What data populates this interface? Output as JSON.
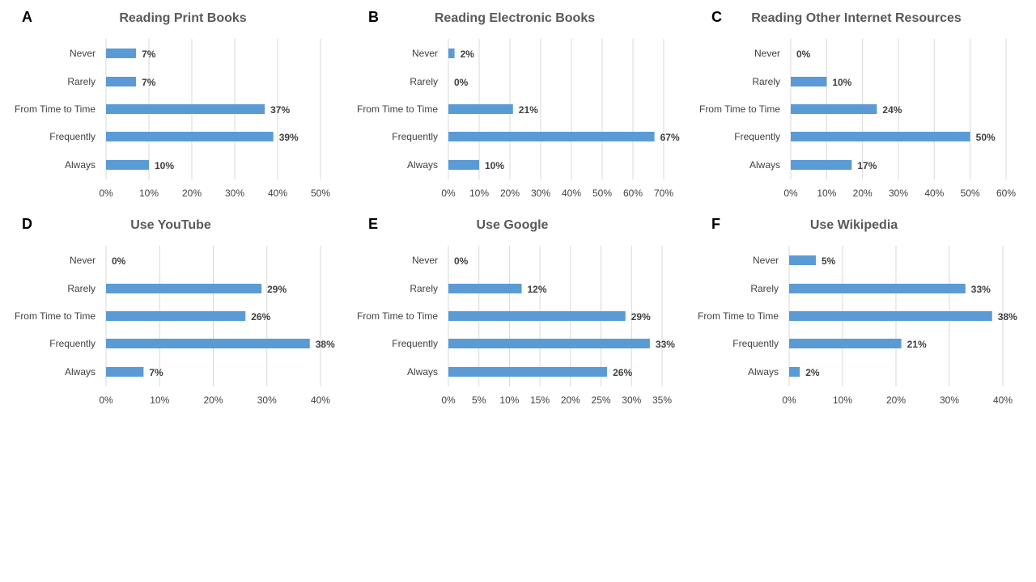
{
  "bar_color": "#5b9bd5",
  "chart_data": [
    {
      "panel": "A",
      "type": "bar",
      "orientation": "horizontal",
      "title": "Reading Print Books",
      "categories": [
        "Never",
        "Rarely",
        "From Time to Time",
        "Frequently",
        "Always"
      ],
      "values": [
        7,
        7,
        37,
        39,
        10
      ],
      "value_labels": [
        "7%",
        "7%",
        "37%",
        "39%",
        "10%"
      ],
      "xlim": [
        0,
        50
      ],
      "ticks": [
        0,
        10,
        20,
        30,
        40,
        50
      ],
      "tick_labels": [
        "0%",
        "10%",
        "20%",
        "30%",
        "40%",
        "50%"
      ],
      "grid": true
    },
    {
      "panel": "B",
      "type": "bar",
      "orientation": "horizontal",
      "title": "Reading Electronic Books",
      "categories": [
        "Never",
        "Rarely",
        "From Time to Time",
        "Frequently",
        "Always"
      ],
      "values": [
        2,
        0,
        21,
        67,
        10
      ],
      "value_labels": [
        "2%",
        "0%",
        "21%",
        "67%",
        "10%"
      ],
      "xlim": [
        0,
        70
      ],
      "ticks": [
        0,
        10,
        20,
        30,
        40,
        50,
        60,
        70
      ],
      "tick_labels": [
        "0%",
        "10%",
        "20%",
        "30%",
        "40%",
        "50%",
        "60%",
        "70%"
      ],
      "grid": true
    },
    {
      "panel": "C",
      "type": "bar",
      "orientation": "horizontal",
      "title": "Reading Other Internet Resources",
      "categories": [
        "Never",
        "Rarely",
        "From Time to Time",
        "Frequently",
        "Always"
      ],
      "values": [
        0,
        10,
        24,
        50,
        17
      ],
      "value_labels": [
        "0%",
        "10%",
        "24%",
        "50%",
        "17%"
      ],
      "xlim": [
        0,
        60
      ],
      "ticks": [
        0,
        10,
        20,
        30,
        40,
        50,
        60
      ],
      "tick_labels": [
        "0%",
        "10%",
        "20%",
        "30%",
        "40%",
        "50%",
        "60%"
      ],
      "grid": true
    },
    {
      "panel": "D",
      "type": "bar",
      "orientation": "horizontal",
      "title": "Use YouTube",
      "categories": [
        "Never",
        "Rarely",
        "From Time to Time",
        "Frequently",
        "Always"
      ],
      "values": [
        0,
        29,
        26,
        38,
        7
      ],
      "value_labels": [
        "0%",
        "29%",
        "26%",
        "38%",
        "7%"
      ],
      "xlim": [
        0,
        40
      ],
      "ticks": [
        0,
        10,
        20,
        30,
        40
      ],
      "tick_labels": [
        "0%",
        "10%",
        "20%",
        "30%",
        "40%"
      ],
      "grid": true
    },
    {
      "panel": "E",
      "type": "bar",
      "orientation": "horizontal",
      "title": "Use Google",
      "categories": [
        "Never",
        "Rarely",
        "From Time to Time",
        "Frequently",
        "Always"
      ],
      "values": [
        0,
        12,
        29,
        33,
        26
      ],
      "value_labels": [
        "0%",
        "12%",
        "29%",
        "33%",
        "26%"
      ],
      "xlim": [
        0,
        35
      ],
      "ticks": [
        0,
        5,
        10,
        15,
        20,
        25,
        30,
        35
      ],
      "tick_labels": [
        "0%",
        "5%",
        "10%",
        "15%",
        "20%",
        "25%",
        "30%",
        "35%"
      ],
      "grid": true
    },
    {
      "panel": "F",
      "type": "bar",
      "orientation": "horizontal",
      "title": "Use Wikipedia",
      "categories": [
        "Never",
        "Rarely",
        "From Time to Time",
        "Frequently",
        "Always"
      ],
      "values": [
        5,
        33,
        38,
        21,
        2
      ],
      "value_labels": [
        "5%",
        "33%",
        "38%",
        "21%",
        "2%"
      ],
      "xlim": [
        0,
        40
      ],
      "ticks": [
        0,
        10,
        20,
        30,
        40
      ],
      "tick_labels": [
        "0%",
        "10%",
        "20%",
        "30%",
        "40%"
      ],
      "grid": true
    }
  ]
}
